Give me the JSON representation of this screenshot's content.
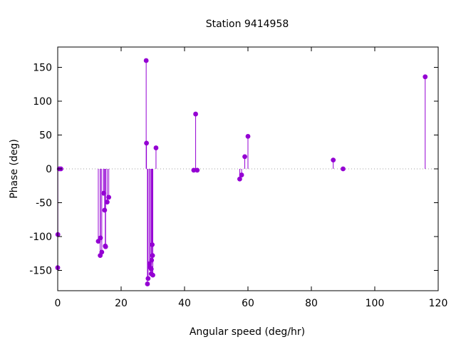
{
  "chart_data": {
    "type": "scatter",
    "style": "impulses-with-points",
    "title": "Station 9414958",
    "xlabel": "Angular speed (deg/hr)",
    "ylabel": "Phase (deg)",
    "xlim": [
      0,
      120
    ],
    "ylim": [
      -180,
      180
    ],
    "xticks": [
      0,
      20,
      40,
      60,
      80,
      100,
      120
    ],
    "yticks": [
      -150,
      -100,
      -50,
      0,
      50,
      100,
      150
    ],
    "grid": false,
    "legend": "none",
    "zero_line": true,
    "colors": {
      "series": "#9400d3",
      "zero_line": "#a0a0a0",
      "axis": "#000000"
    },
    "series": [
      {
        "points": [
          {
            "x": 0.0,
            "y": -146
          },
          {
            "x": 0.04,
            "y": -97
          },
          {
            "x": 0.5,
            "y": 0
          },
          {
            "x": 1.0,
            "y": 0
          },
          {
            "x": 12.8,
            "y": -107
          },
          {
            "x": 13.4,
            "y": -128
          },
          {
            "x": 13.5,
            "y": -102
          },
          {
            "x": 13.9,
            "y": -123
          },
          {
            "x": 14.5,
            "y": -36
          },
          {
            "x": 14.8,
            "y": -61
          },
          {
            "x": 15.0,
            "y": -114
          },
          {
            "x": 15.1,
            "y": -115
          },
          {
            "x": 15.6,
            "y": -49
          },
          {
            "x": 16.1,
            "y": -42
          },
          {
            "x": 27.9,
            "y": 160
          },
          {
            "x": 28.0,
            "y": 38
          },
          {
            "x": 28.3,
            "y": -170
          },
          {
            "x": 28.5,
            "y": -162
          },
          {
            "x": 29.0,
            "y": -140
          },
          {
            "x": 29.1,
            "y": -145
          },
          {
            "x": 29.5,
            "y": -148
          },
          {
            "x": 29.5,
            "y": -155
          },
          {
            "x": 29.6,
            "y": -135
          },
          {
            "x": 29.8,
            "y": -112
          },
          {
            "x": 29.9,
            "y": -128
          },
          {
            "x": 30.0,
            "y": -157
          },
          {
            "x": 31.0,
            "y": 31
          },
          {
            "x": 42.9,
            "y": -2
          },
          {
            "x": 43.5,
            "y": 81
          },
          {
            "x": 44.0,
            "y": -2
          },
          {
            "x": 57.4,
            "y": -15
          },
          {
            "x": 58.0,
            "y": -9
          },
          {
            "x": 59.0,
            "y": 18
          },
          {
            "x": 60.0,
            "y": 48
          },
          {
            "x": 86.9,
            "y": 13
          },
          {
            "x": 90.0,
            "y": 0
          },
          {
            "x": 115.9,
            "y": 136
          }
        ]
      }
    ]
  }
}
